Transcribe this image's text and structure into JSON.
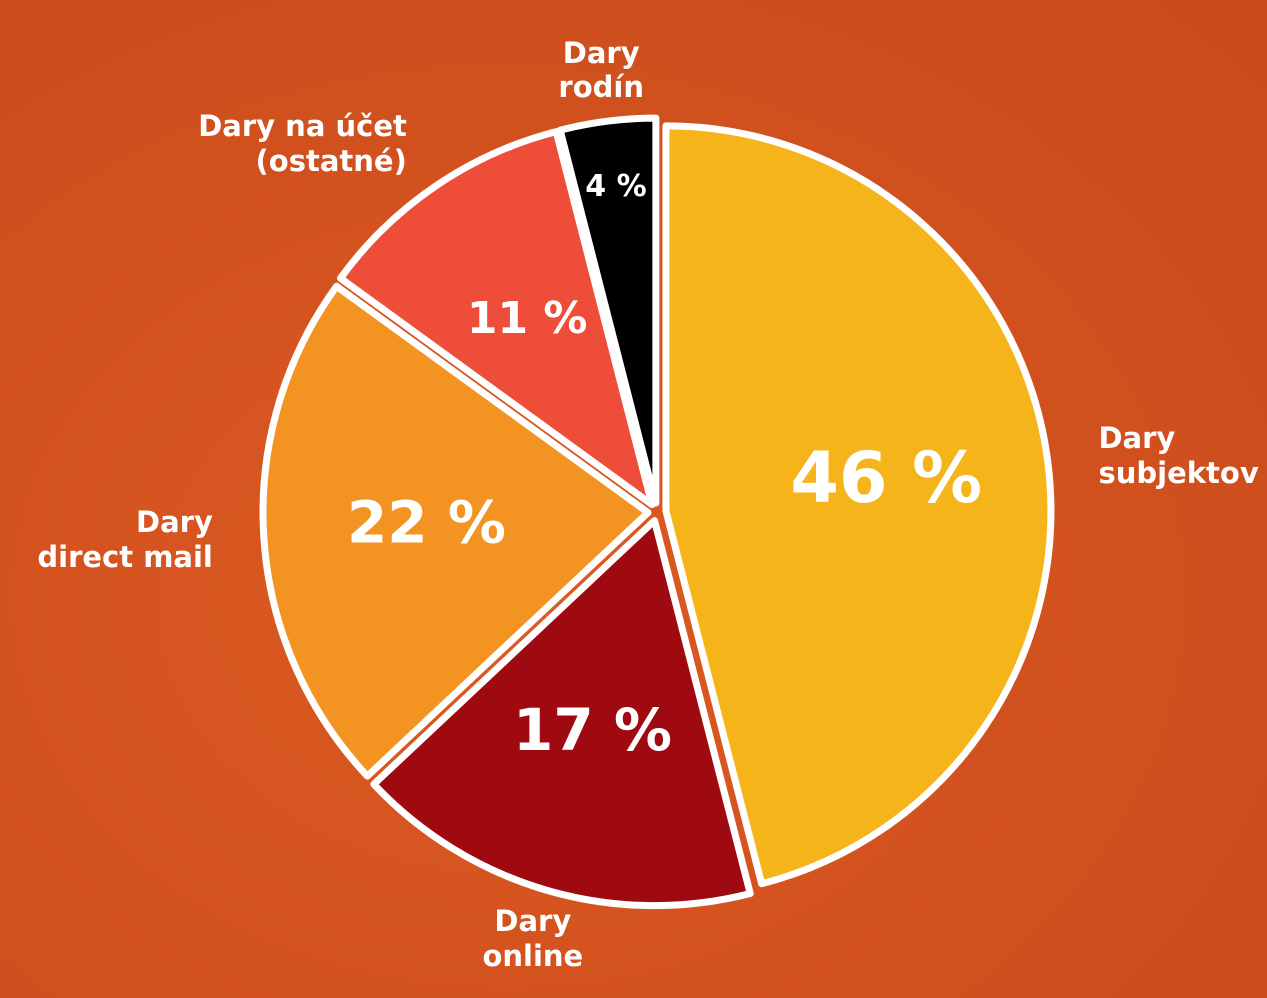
{
  "chart_data": {
    "type": "pie",
    "categories": [
      "Dary\nsubjektov",
      "Dary\nonline",
      "Dary\ndirect mail",
      "Dary na účet\n(ostatné)",
      "Dary\nrodín"
    ],
    "values": [
      46,
      17,
      22,
      11,
      4
    ],
    "value_labels": [
      "46 %",
      "17 %",
      "22 %",
      "11 %",
      "4 %"
    ],
    "colors": [
      "#f4b41a",
      "#9e0a10",
      "#f39322",
      "#ee4d3a",
      "#000000"
    ]
  }
}
